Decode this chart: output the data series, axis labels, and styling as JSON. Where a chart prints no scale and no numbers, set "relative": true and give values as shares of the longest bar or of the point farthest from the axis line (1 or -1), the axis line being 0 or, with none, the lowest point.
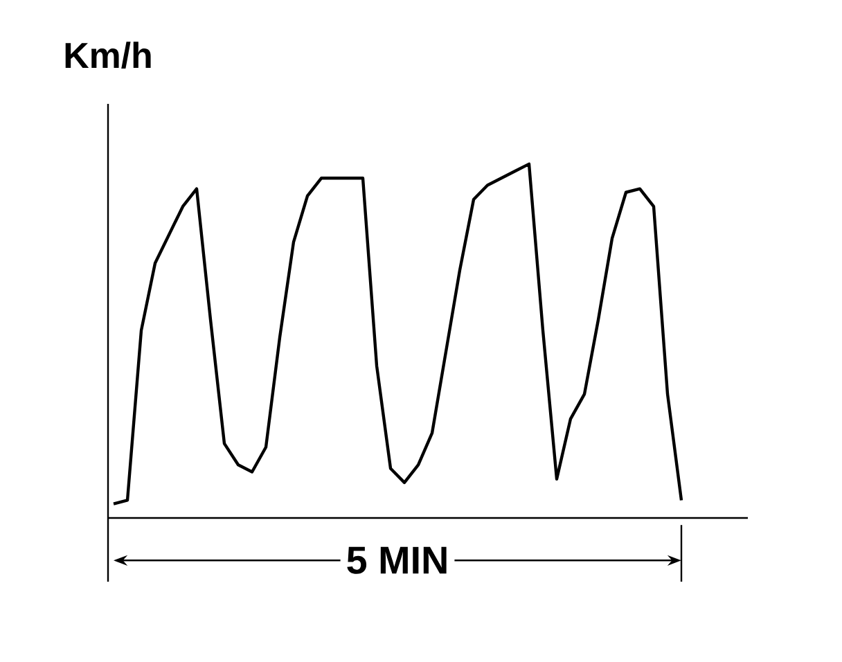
{
  "chart_data": {
    "type": "line",
    "ylabel": "Km/h",
    "annotations": [
      "5 MIN"
    ],
    "relative": true,
    "categories": [
      null,
      null,
      null,
      null,
      null,
      null,
      null,
      null,
      null,
      null,
      null,
      null,
      null,
      null,
      null,
      null,
      null,
      null,
      null,
      null,
      null,
      null,
      null,
      null,
      null,
      null,
      null,
      null,
      null,
      null,
      null,
      null,
      null,
      null,
      null,
      null,
      null,
      null,
      null,
      null,
      null,
      null
    ],
    "color": "#000000",
    "values": [
      0.04,
      0.05,
      0.53,
      0.72,
      0.8,
      0.88,
      0.93,
      0.56,
      0.21,
      0.15,
      0.13,
      0.2,
      0.51,
      0.78,
      0.91,
      0.96,
      0.96,
      0.96,
      0.96,
      0.43,
      0.14,
      0.1,
      0.15,
      0.24,
      0.47,
      0.7,
      0.9,
      0.94,
      0.96,
      0.98,
      1,
      0.53,
      0.11,
      0.28,
      0.35,
      0.56,
      0.79,
      0.92,
      0.93,
      0.88,
      0.35,
      0.05
    ]
  }
}
